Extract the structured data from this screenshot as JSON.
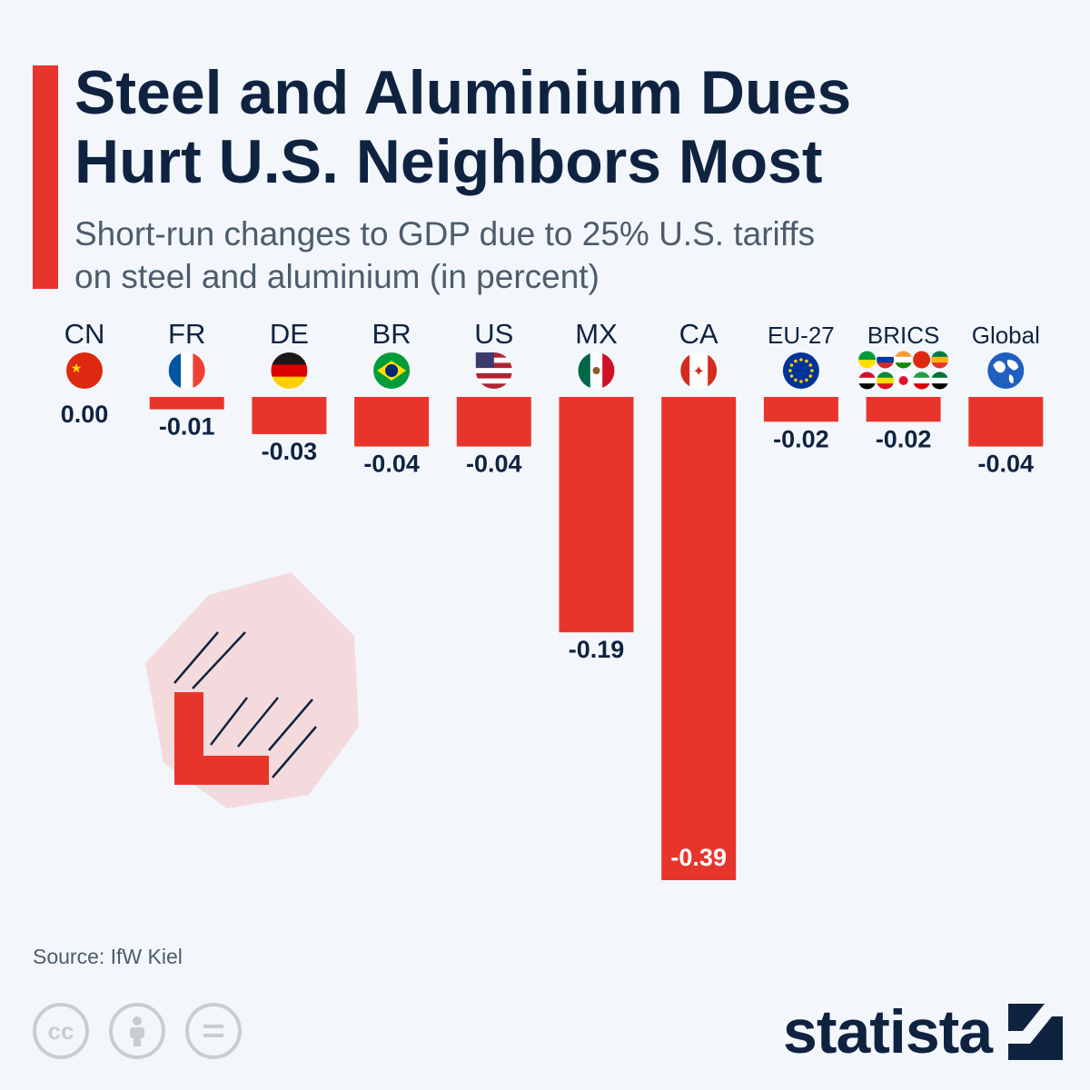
{
  "header": {
    "title_line1": "Steel and Aluminium Dues",
    "title_line2": "Hurt U.S. Neighbors Most",
    "subtitle_line1": "Short-run changes to GDP due to 25% U.S. tariffs",
    "subtitle_line2": "on steel and aluminium (in percent)"
  },
  "chart_data": {
    "type": "bar",
    "title": "Steel and Aluminium Dues Hurt U.S. Neighbors Most",
    "subtitle": "Short-run changes to GDP due to 25% U.S. tariffs on steel and aluminium (in percent)",
    "categories": [
      "CN",
      "FR",
      "DE",
      "BR",
      "US",
      "MX",
      "CA",
      "EU-27",
      "BRICS",
      "Global"
    ],
    "values": [
      0.0,
      -0.01,
      -0.03,
      -0.04,
      -0.04,
      -0.19,
      -0.39,
      -0.02,
      -0.02,
      -0.04
    ],
    "labels": [
      "0.00",
      "-0.01",
      "-0.03",
      "-0.04",
      "-0.04",
      "-0.19",
      "-0.39",
      "-0.02",
      "-0.02",
      "-0.04"
    ],
    "flags": [
      "flag-cn-icon",
      "flag-fr-icon",
      "flag-de-icon",
      "flag-br-icon",
      "flag-us-icon",
      "flag-mx-icon",
      "flag-ca-icon",
      "flag-eu-icon",
      "brics-flags-icon",
      "globe-icon"
    ],
    "ylim": [
      -0.39,
      0
    ],
    "bar_color": "#e8352b",
    "xlabel": "",
    "ylabel": ""
  },
  "footer": {
    "source": "Source: IfW Kiel",
    "license_icons": [
      "cc-icon",
      "attribution-icon",
      "no-derivatives-icon"
    ],
    "brand": "statista"
  },
  "colors": {
    "accent": "#e8352b",
    "title": "#0f2341",
    "subtitle": "#4d5c6d",
    "background": "#f3f7fb"
  }
}
